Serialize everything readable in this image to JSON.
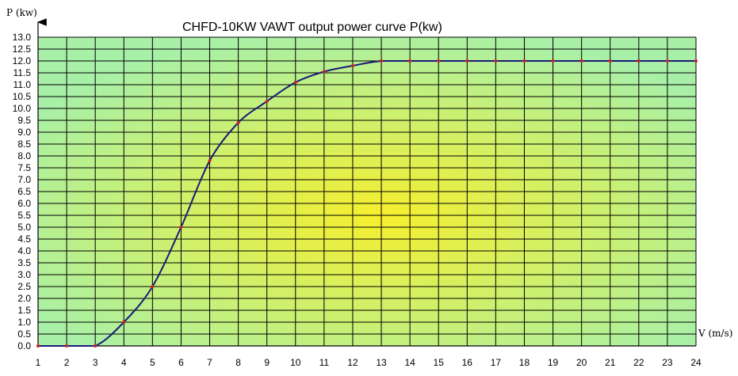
{
  "chart_data": {
    "type": "line",
    "title": "CHFD-10KW VAWT output power curve  P(kw)",
    "xlabel": "V (m/s)",
    "ylabel": "P (kw)",
    "xlim": [
      1,
      24
    ],
    "ylim": [
      0,
      13
    ],
    "x_ticks": [
      1,
      2,
      3,
      4,
      5,
      6,
      7,
      8,
      9,
      10,
      11,
      12,
      13,
      14,
      15,
      16,
      17,
      18,
      19,
      20,
      21,
      22,
      23,
      24
    ],
    "y_ticks": [
      "0.0",
      "0.5",
      "1.0",
      "1.5",
      "2.0",
      "2.5",
      "3.0",
      "3.5",
      "4.0",
      "4.5",
      "5.0",
      "5.5",
      "6.0",
      "6.5",
      "7.0",
      "7.5",
      "8.0",
      "8.5",
      "9.0",
      "9.5",
      "10.0",
      "10.5",
      "11.0",
      "11.5",
      "12.0",
      "12.5",
      "13.0"
    ],
    "grid": true,
    "series": [
      {
        "x": [
          1,
          2,
          3,
          4,
          5,
          6,
          7,
          8,
          9,
          10,
          11,
          12,
          13,
          14,
          15,
          16,
          17,
          18,
          19,
          20,
          21,
          22,
          23,
          24
        ],
        "y": [
          0,
          0,
          0,
          1.0,
          2.5,
          5.0,
          7.8,
          9.4,
          10.3,
          11.1,
          11.55,
          11.8,
          12.0,
          12.0,
          12.0,
          12.0,
          12.0,
          12.0,
          12.0,
          12.0,
          12.0,
          12.0,
          12.0,
          12.0
        ]
      }
    ],
    "colors": {
      "line": "#1a1a7a",
      "markers": "#cc2222",
      "grid": "#000000",
      "background_center": "#f6ef2e",
      "background_edge": "#a8f0a8"
    }
  }
}
